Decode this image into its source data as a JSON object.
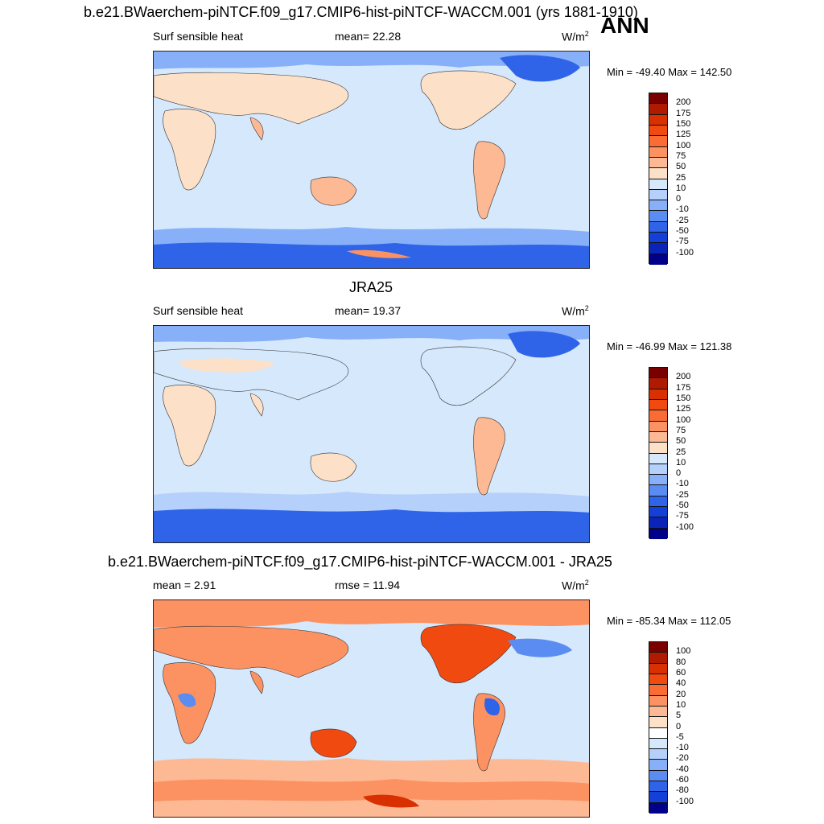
{
  "panels": [
    {
      "title": "b.e21.BWaerchem-piNTCF.f09_g17.CMIP6-hist-piNTCF-WACCM.001 (yrs 1881-1910)",
      "left_label": "Surf sensible heat",
      "center_label": "mean=  22.28",
      "units": "W/m",
      "units_sup": "2",
      "minmax": "Min = -49.40 Max = 142.50",
      "colorbar": {
        "labels": [
          "200",
          "175",
          "150",
          "125",
          "100",
          "75",
          "50",
          "25",
          "10",
          "0",
          "-10",
          "-25",
          "-50",
          "-75",
          "-100"
        ],
        "colors": [
          "#7a0000",
          "#b01a00",
          "#d83000",
          "#f04a10",
          "#fb6c34",
          "#fc9262",
          "#fdb894",
          "#fde0c8",
          "#d6e8fb",
          "#b4d0fb",
          "#88b0f8",
          "#5a8cf2",
          "#2f64e8",
          "#1440d8",
          "#0a24b8",
          "#000088"
        ]
      }
    },
    {
      "title": "JRA25",
      "left_label": "Surf sensible heat",
      "center_label": "mean=  19.37",
      "units": "W/m",
      "units_sup": "2",
      "minmax": "Min = -46.99 Max = 121.38",
      "colorbar": {
        "labels": [
          "200",
          "175",
          "150",
          "125",
          "100",
          "75",
          "50",
          "25",
          "10",
          "0",
          "-10",
          "-25",
          "-50",
          "-75",
          "-100"
        ],
        "colors": [
          "#7a0000",
          "#b01a00",
          "#d83000",
          "#f04a10",
          "#fb6c34",
          "#fc9262",
          "#fdb894",
          "#fde0c8",
          "#d6e8fb",
          "#b4d0fb",
          "#88b0f8",
          "#5a8cf2",
          "#2f64e8",
          "#1440d8",
          "#0a24b8",
          "#000088"
        ]
      }
    },
    {
      "title": "b.e21.BWaerchem-piNTCF.f09_g17.CMIP6-hist-piNTCF-WACCM.001 - JRA25",
      "left_label": "mean =   2.91",
      "center_label": "rmse =  11.94",
      "units": "W/m",
      "units_sup": "2",
      "minmax": "Min = -85.34 Max = 112.05",
      "colorbar": {
        "labels": [
          "100",
          "80",
          "60",
          "40",
          "20",
          "10",
          "5",
          "0",
          "-5",
          "-10",
          "-20",
          "-40",
          "-60",
          "-80",
          "-100"
        ],
        "colors": [
          "#7a0000",
          "#b01a00",
          "#d83000",
          "#f04a10",
          "#fb6c34",
          "#fc9262",
          "#fdb894",
          "#fde0c8",
          "#ffffff",
          "#d6e8fb",
          "#b4d0fb",
          "#88b0f8",
          "#5a8cf2",
          "#2f64e8",
          "#1440d8",
          "#000088"
        ]
      }
    }
  ],
  "season_label": "ANN",
  "colors": {
    "ocean_pos": "#d6e8fb",
    "land_warm": "#fde0c8",
    "land_hot": "#fdb894",
    "cold": "#5a8cf2",
    "very_cold": "#2f64e8",
    "diff_warm": "#fc9262",
    "diff_hot": "#f04a10"
  }
}
